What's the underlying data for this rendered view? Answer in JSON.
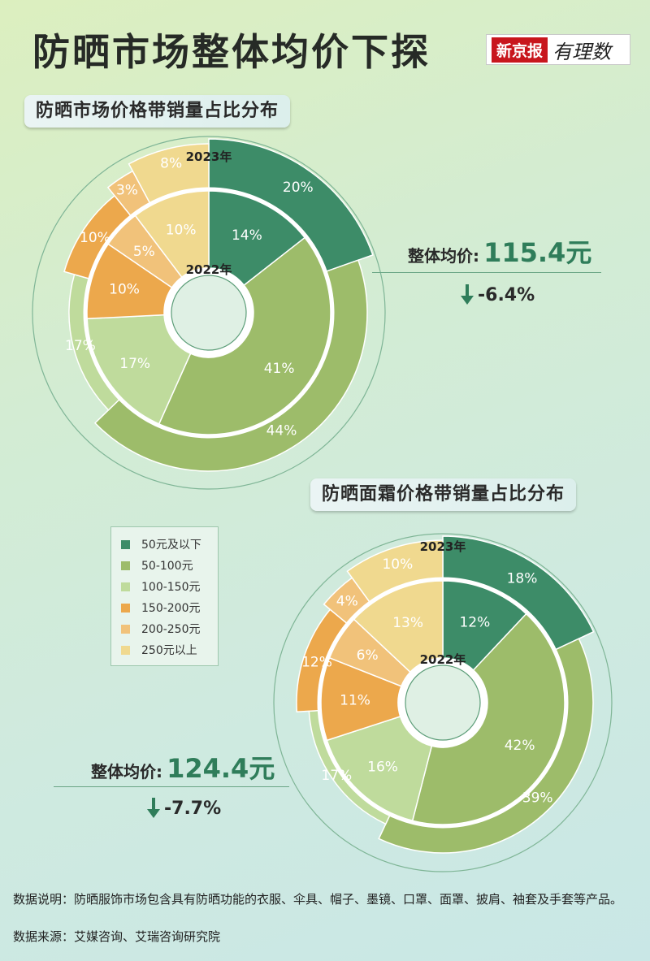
{
  "title": "防晒市场整体均价下探",
  "brand": {
    "name": "新京报",
    "column": "有理数"
  },
  "legend_items": [
    {
      "label": "50元及以下",
      "color": "#3d8c68"
    },
    {
      "label": "50-100元",
      "color": "#9dbc6a"
    },
    {
      "label": "100-150元",
      "color": "#bfdb9c"
    },
    {
      "label": "150-200元",
      "color": "#eca84c"
    },
    {
      "label": "200-250元",
      "color": "#f1c27a"
    },
    {
      "label": "250元以上",
      "color": "#f0d98f"
    }
  ],
  "chart_data": [
    {
      "type": "pie",
      "title": "防晒市场价格带销量占比分布",
      "categories": [
        "50元及以下",
        "50-100元",
        "100-150元",
        "150-200元",
        "200-250元",
        "250元以上"
      ],
      "series": [
        {
          "name": "2023年",
          "values": [
            20,
            44,
            17,
            10,
            3,
            8
          ],
          "labels": [
            "20%",
            "44%",
            "17%",
            "10%",
            "3%",
            "8%"
          ]
        },
        {
          "name": "2022年",
          "values": [
            14,
            41,
            17,
            10,
            5,
            10
          ],
          "labels": [
            "14%",
            "41%",
            "17%",
            "10%",
            "5%",
            "10%"
          ]
        }
      ],
      "average_label": "整体均价:",
      "average_value": "115.4元",
      "change": "-6.4%"
    },
    {
      "type": "pie",
      "title": "防晒面霜价格带销量占比分布",
      "categories": [
        "50元及以下",
        "50-100元",
        "100-150元",
        "150-200元",
        "200-250元",
        "250元以上"
      ],
      "series": [
        {
          "name": "2023年",
          "values": [
            18,
            39,
            17,
            12,
            4,
            10
          ],
          "labels": [
            "18%",
            "39%",
            "17%",
            "12%",
            "4%",
            "10%"
          ]
        },
        {
          "name": "2022年",
          "values": [
            12,
            42,
            16,
            11,
            6,
            13
          ],
          "labels": [
            "12%",
            "42%",
            "16%",
            "11%",
            "6%",
            "13%"
          ]
        }
      ],
      "average_label": "整体均价:",
      "average_value": "124.4元",
      "change": "-7.7%"
    }
  ],
  "note": "数据说明：防晒服饰市场包含具有防晒功能的衣服、伞具、帽子、墨镜、口罩、面罩、披肩、袖套及手套等产品。",
  "source": "数据来源：艾媒咨询、艾瑞咨询研究院"
}
